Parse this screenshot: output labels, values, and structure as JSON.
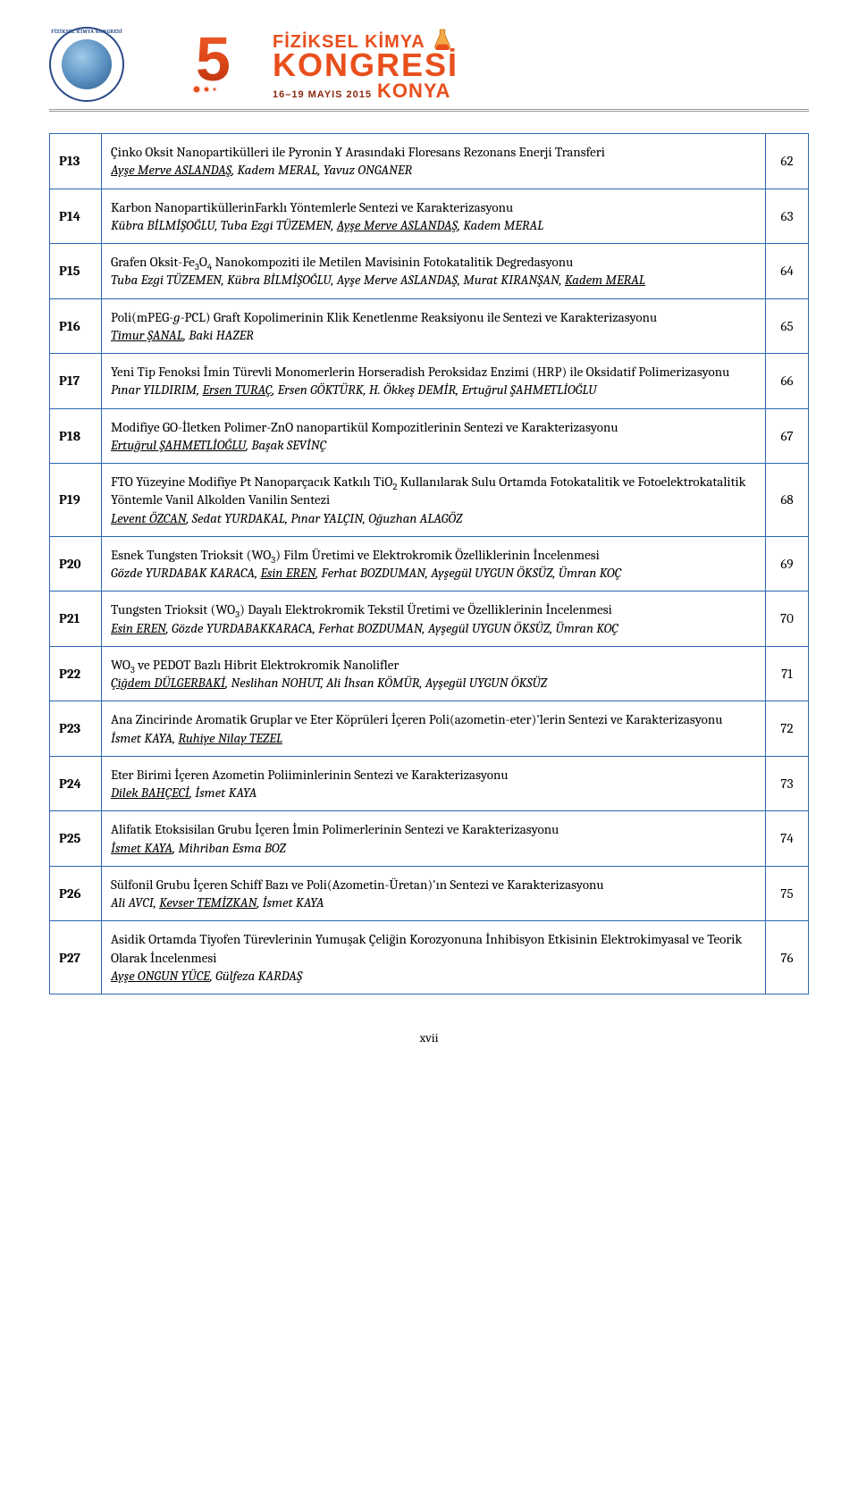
{
  "header": {
    "badge_label": "FİZİKSEL KİMYA KONGRESİ",
    "line1": "FİZİKSEL KİMYA",
    "line2": "KONGRESİ",
    "dates": "16–19 MAYIS 2015",
    "city": "KONYA"
  },
  "page_number": "xvii",
  "colors": {
    "border": "#2a66b0",
    "accent": "#e84f1c",
    "text": "#000000",
    "background": "#ffffff"
  },
  "entries": [
    {
      "code": "P13",
      "title": "Çinko Oksit Nanopartikülleri ile Pyronin Y Arasındaki Floresans Rezonans Enerji Transferi",
      "authors_html": "<span class='u'>Ayşe Merve ASLANDAŞ</span>, Kadem MERAL, Yavuz ONGANER",
      "page": "62"
    },
    {
      "code": "P14",
      "title": "Karbon NanopartiküllerinFarklı Yöntemlerle Sentezi ve Karakterizasyonu",
      "authors_html": "Kübra BİLMİŞOĞLU, Tuba Ezgi TÜZEMEN, <span class='u'>Ayşe Merve ASLANDAŞ</span>, Kadem MERAL",
      "page": "63"
    },
    {
      "code": "P15",
      "title_html": "Grafen Oksit-Fe<span class='sub'>3</span>O<span class='sub'>4</span> Nanokompoziti ile Metilen Mavisinin Fotokatalitik Degredasyonu",
      "authors_html": "Tuba Ezgi TÜZEMEN, Kübra BİLMİŞOĞLU, Ayşe Merve ASLANDAŞ, Murat KIRANŞAN, <span class='u'>Kadem MERAL</span>",
      "page": "64"
    },
    {
      "code": "P16",
      "title_html": "Poli(mPEG-<span class='ital'>g</span>-PCL) Graft Kopolimerinin Klik Kenetlenme Reaksiyonu ile Sentezi ve Karakterizasyonu",
      "authors_html": "<span class='u'>Timur ŞANAL</span>, Baki HAZER",
      "page": "65"
    },
    {
      "code": "P17",
      "title": "Yeni Tip Fenoksi İmin Türevli Monomerlerin Horseradish Peroksidaz Enzimi (HRP) ile Oksidatif Polimerizasyonu",
      "authors_html": "Pınar YILDIRIM, <span class='u'>Ersen TURAÇ</span>, Ersen GÖKTÜRK, H. Ökkeş DEMİR, Ertuğrul ŞAHMETLİOĞLU",
      "page": "66"
    },
    {
      "code": "P18",
      "title": "Modifiye GO-İletken Polimer-ZnO nanopartikül Kompozitlerinin Sentezi ve Karakterizasyonu",
      "authors_html": "<span class='u'>Ertuğrul ŞAHMETLİOĞLU</span>, Başak SEVİNÇ",
      "page": "67"
    },
    {
      "code": "P19",
      "title_html": "FTO Yüzeyine Modifiye Pt Nanoparçacık Katkılı TiO<span class='sub'>2</span> Kullanılarak Sulu Ortamda Fotokatalitik ve Fotoelektrokatalitik Yöntemle Vanil Alkolden Vanilin Sentezi",
      "authors_html": "<span class='u'>Levent ÖZCAN</span>, Sedat YURDAKAL, Pınar YALÇIN, Oğuzhan ALAGÖZ",
      "page": "68"
    },
    {
      "code": "P20",
      "title_html": "Esnek Tungsten Trioksit (WO<span class='sub'>3</span>) Film Üretimi ve Elektrokromik Özelliklerinin İncelenmesi",
      "authors_html": "Gözde YURDABAK KARACA, <span class='u'>Esin EREN</span>, Ferhat BOZDUMAN, Ayşegül UYGUN ÖKSÜZ, Ümran KOÇ",
      "page": "69"
    },
    {
      "code": "P21",
      "title_html": "Tungsten Trioksit (WO<span class='sub'>3</span>) Dayalı Elektrokromik Tekstil Üretimi ve Özelliklerinin İncelenmesi",
      "authors_html": "<span class='u'>Esin EREN</span>, Gözde YURDABAKKARACA, Ferhat BOZDUMAN, Ayşegül UYGUN ÖKSÜZ, Ümran KOÇ",
      "page": "70"
    },
    {
      "code": "P22",
      "title_html": "WO<span class='sub'>3</span> ve PEDOT Bazlı Hibrit Elektrokromik Nanolifler",
      "authors_html": "<span class='u'>Çiğdem DÜLGERBAKİ</span>, Neslihan NOHUT, Ali İhsan KÖMÜR, Ayşegül UYGUN ÖKSÜZ",
      "page": "71"
    },
    {
      "code": "P23",
      "title": "Ana Zincirinde Aromatik Gruplar ve Eter Köprüleri İçeren Poli(azometin-eter)'lerin Sentezi ve Karakterizasyonu",
      "authors_html": "İsmet KAYA, <span class='u'>Ruhiye Nilay TEZEL</span>",
      "page": "72"
    },
    {
      "code": "P24",
      "title": "Eter Birimi İçeren Azometin Poliiminlerinin Sentezi ve Karakterizasyonu",
      "authors_html": "<span class='u'>Dilek BAHÇECİ</span>, İsmet KAYA",
      "page": "73"
    },
    {
      "code": "P25",
      "title": "Alifatik Etoksisilan Grubu İçeren İmin Polimerlerinin Sentezi ve Karakterizasyonu",
      "authors_html": "<span class='u'>İsmet KAYA</span>, Mihriban Esma BOZ",
      "page": "74"
    },
    {
      "code": "P26",
      "title": "Sülfonil Grubu İçeren Schiff Bazı ve Poli(Azometin-Üretan)'ın Sentezi ve Karakterizasyonu",
      "authors_html": "Ali AVCI, <span class='u'>Kevser TEMİZKAN</span>, İsmet KAYA",
      "page": "75"
    },
    {
      "code": "P27",
      "title": "Asidik Ortamda Tiyofen Türevlerinin Yumuşak Çeliğin Korozyonuna İnhibisyon Etkisinin Elektrokimyasal ve Teorik Olarak İncelenmesi",
      "authors_html": "<span class='u'>Ayşe ONGUN YÜCE</span>, Gülfeza KARDAŞ",
      "page": "76"
    }
  ]
}
